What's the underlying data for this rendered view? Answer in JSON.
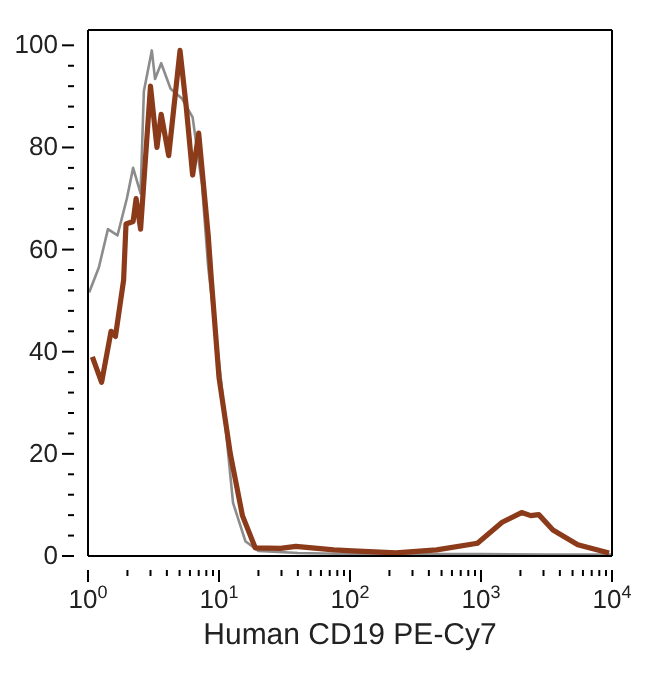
{
  "chart_data": {
    "type": "line",
    "xlabel": "Human CD19  PE-Cy7",
    "log": "x",
    "marker": "none",
    "line_style": "solid",
    "xlim": [
      1,
      10000
    ],
    "xticks": [
      {
        "value": 1,
        "label": "10$^{0}$"
      },
      {
        "value": 2,
        "label": null
      },
      {
        "value": 3,
        "label": null
      },
      {
        "value": 4,
        "label": null
      },
      {
        "value": 5,
        "label": null
      },
      {
        "value": 6,
        "label": null
      },
      {
        "value": 7,
        "label": null
      },
      {
        "value": 8,
        "label": null
      },
      {
        "value": 9,
        "label": null
      },
      {
        "value": 10,
        "label": "10$^{1}$"
      },
      {
        "value": 20,
        "label": null
      },
      {
        "value": 30,
        "label": null
      },
      {
        "value": 40,
        "label": null
      },
      {
        "value": 50,
        "label": null
      },
      {
        "value": 60,
        "label": null
      },
      {
        "value": 70,
        "label": null
      },
      {
        "value": 80,
        "label": null
      },
      {
        "value": 90,
        "label": null
      },
      {
        "value": 100,
        "label": "10$^{2}$"
      },
      {
        "value": 200,
        "label": null
      },
      {
        "value": 300,
        "label": null
      },
      {
        "value": 400,
        "label": null
      },
      {
        "value": 500,
        "label": null
      },
      {
        "value": 600,
        "label": null
      },
      {
        "value": 700,
        "label": null
      },
      {
        "value": 800,
        "label": null
      },
      {
        "value": 900,
        "label": null
      },
      {
        "value": 1000,
        "label": "10$^{3}$"
      },
      {
        "value": 2000,
        "label": null
      },
      {
        "value": 3000,
        "label": null
      },
      {
        "value": 4000,
        "label": null
      },
      {
        "value": 5000,
        "label": null
      },
      {
        "value": 6000,
        "label": null
      },
      {
        "value": 7000,
        "label": null
      },
      {
        "value": 8000,
        "label": null
      },
      {
        "value": 9000,
        "label": null
      },
      {
        "value": 10000,
        "label": "10$^{4}$"
      }
    ],
    "ylim": [
      0,
      103
    ],
    "yticks": [
      0,
      {
        "value": 4,
        "label": null
      },
      {
        "value": 8,
        "label": null
      },
      {
        "value": 12,
        "label": null
      },
      {
        "value": 16,
        "label": null
      },
      20,
      {
        "value": 24,
        "label": null
      },
      {
        "value": 28,
        "label": null
      },
      {
        "value": 32,
        "label": null
      },
      {
        "value": 36,
        "label": null
      },
      40,
      {
        "value": 44,
        "label": null
      },
      {
        "value": 48,
        "label": null
      },
      {
        "value": 52,
        "label": null
      },
      {
        "value": 56,
        "label": null
      },
      60,
      {
        "value": 64,
        "label": null
      },
      {
        "value": 68,
        "label": null
      },
      {
        "value": 72,
        "label": null
      },
      {
        "value": 76,
        "label": null
      },
      80,
      {
        "value": 84,
        "label": null
      },
      {
        "value": 88,
        "label": null
      },
      {
        "value": 92,
        "label": null
      },
      {
        "value": 96,
        "label": null
      },
      100
    ],
    "series": [
      {
        "color": "#8c8c8c",
        "x": [
          1.02,
          1.21,
          1.42,
          1.68,
          1.98,
          2.21,
          2.52,
          2.67,
          3.07,
          3.25,
          3.62,
          4.27,
          5.21,
          6.29,
          7.41,
          8.27,
          10.3,
          12.8,
          15.9,
          20,
          40,
          100,
          300,
          1000,
          3000,
          10000
        ],
        "values": [
          51.6,
          56.5,
          64,
          62.8,
          70,
          76,
          71,
          91,
          99,
          93.4,
          96.5,
          91.5,
          89.6,
          85.9,
          72.8,
          56.6,
          35,
          10.4,
          2.9,
          1,
          0.6,
          0.4,
          0.4,
          0.4,
          0.3,
          0.3
        ]
      },
      {
        "color": "#8b3a1a",
        "x": [
          1.08,
          1.27,
          1.5,
          1.62,
          1.87,
          1.95,
          2.21,
          2.33,
          2.52,
          3,
          3.36,
          3.62,
          4.13,
          5.04,
          5.62,
          6.29,
          7,
          8.27,
          8.75,
          10,
          12.2,
          15.1,
          18.9,
          29.5,
          38.6,
          75,
          105,
          224,
          459,
          940,
          1450,
          2040,
          2400,
          2760,
          3540,
          5480,
          9500
        ],
        "values": [
          39,
          34,
          44,
          43,
          54,
          65,
          65.5,
          70,
          64,
          92,
          80,
          86.5,
          78.4,
          99,
          88,
          74.6,
          82.8,
          62.8,
          54,
          35,
          20,
          7.9,
          1.6,
          1.5,
          1.9,
          1.2,
          1,
          0.6,
          1.2,
          2.5,
          6.6,
          8.5,
          7.9,
          8.1,
          5.1,
          2.2,
          0.6
        ]
      }
    ]
  }
}
